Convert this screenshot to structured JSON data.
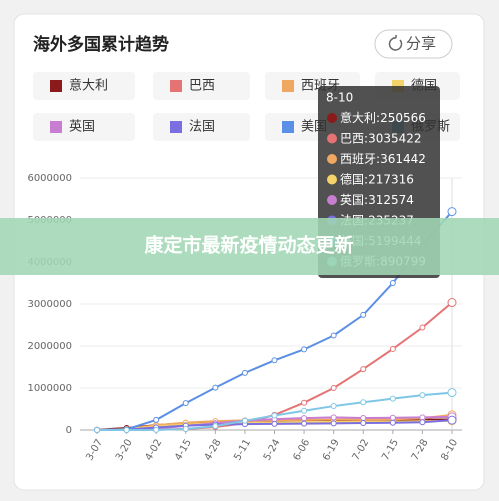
{
  "share": "分享",
  "banner": "康定市最新疫情动态更新",
  "chart_data": {
    "type": "line",
    "title": "海外多国累计趋势",
    "categories": [
      "3-07",
      "3-20",
      "4-02",
      "4-15",
      "4-28",
      "5-11",
      "5-24",
      "6-06",
      "6-19",
      "7-02",
      "7-15",
      "7-28",
      "8-10"
    ],
    "series": [
      {
        "name": "意大利",
        "color": "#8b1a1a",
        "values": [
          5900,
          47000,
          115000,
          165000,
          200000,
          220000,
          230000,
          235000,
          238000,
          241000,
          244000,
          247000,
          250566
        ]
      },
      {
        "name": "巴西",
        "color": "#e57373",
        "values": [
          0,
          0,
          7000,
          25000,
          70000,
          160000,
          360000,
          650000,
          1000000,
          1450000,
          1930000,
          2440000,
          3035422
        ]
      },
      {
        "name": "西班牙",
        "color": "#f0a860",
        "values": [
          400,
          21000,
          112000,
          177000,
          210000,
          228000,
          236000,
          241000,
          246000,
          250000,
          256000,
          280000,
          361442
        ]
      },
      {
        "name": "德国",
        "color": "#f5d36b",
        "values": [
          800,
          18000,
          84000,
          132000,
          160000,
          171000,
          180000,
          184000,
          190000,
          196000,
          200000,
          207000,
          217316
        ]
      },
      {
        "name": "英国",
        "color": "#c77dd0",
        "values": [
          200,
          4000,
          34000,
          98000,
          162000,
          220000,
          260000,
          284000,
          301000,
          285000,
          292000,
          301000,
          312574
        ]
      },
      {
        "name": "法国",
        "color": "#7b6ee0",
        "values": [
          950,
          12000,
          59000,
          104000,
          129000,
          140000,
          145000,
          153000,
          159000,
          166000,
          173000,
          185000,
          235237
        ]
      },
      {
        "name": "美国",
        "color": "#5b8fe6",
        "values": [
          400,
          15000,
          240000,
          640000,
          1010000,
          1360000,
          1660000,
          1920000,
          2250000,
          2740000,
          3500000,
          4400000,
          5199444
        ]
      },
      {
        "name": "俄罗斯",
        "color": "#7fc6e6",
        "values": [
          10,
          250,
          3500,
          24000,
          93000,
          221000,
          344000,
          458000,
          570000,
          660000,
          746000,
          829000,
          890799
        ]
      }
    ],
    "ylim": [
      0,
      6000000
    ],
    "yticks": [
      0,
      1000000,
      2000000,
      3000000,
      4000000,
      5000000,
      6000000
    ],
    "grid": true,
    "tooltip_separator": ":"
  }
}
